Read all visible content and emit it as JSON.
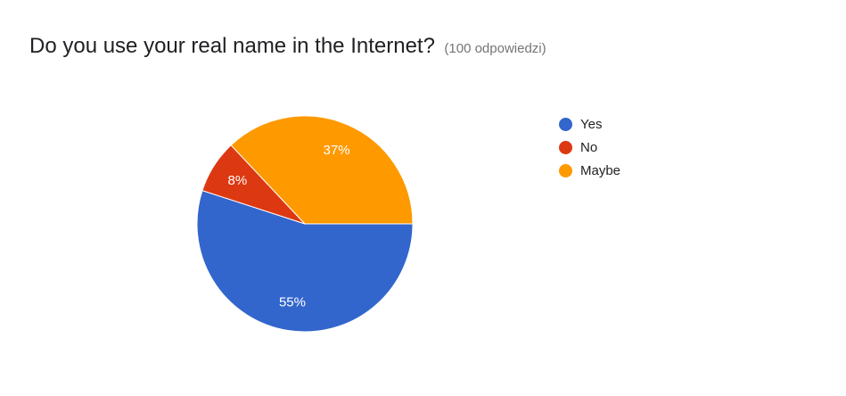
{
  "header": {
    "question": "Do you use your real name in the Internet?",
    "response_count": "(100 odpowiedzi)"
  },
  "chart_data": {
    "type": "pie",
    "title": "Do you use your real name in the Internet?",
    "slices": [
      {
        "label": "Yes",
        "value": 55,
        "display": "55%",
        "color": "#3366cc"
      },
      {
        "label": "No",
        "value": 8,
        "display": "8%",
        "color": "#dc3912"
      },
      {
        "label": "Maybe",
        "value": 37,
        "display": "37%",
        "color": "#ff9900"
      }
    ],
    "legend_position": "right"
  }
}
